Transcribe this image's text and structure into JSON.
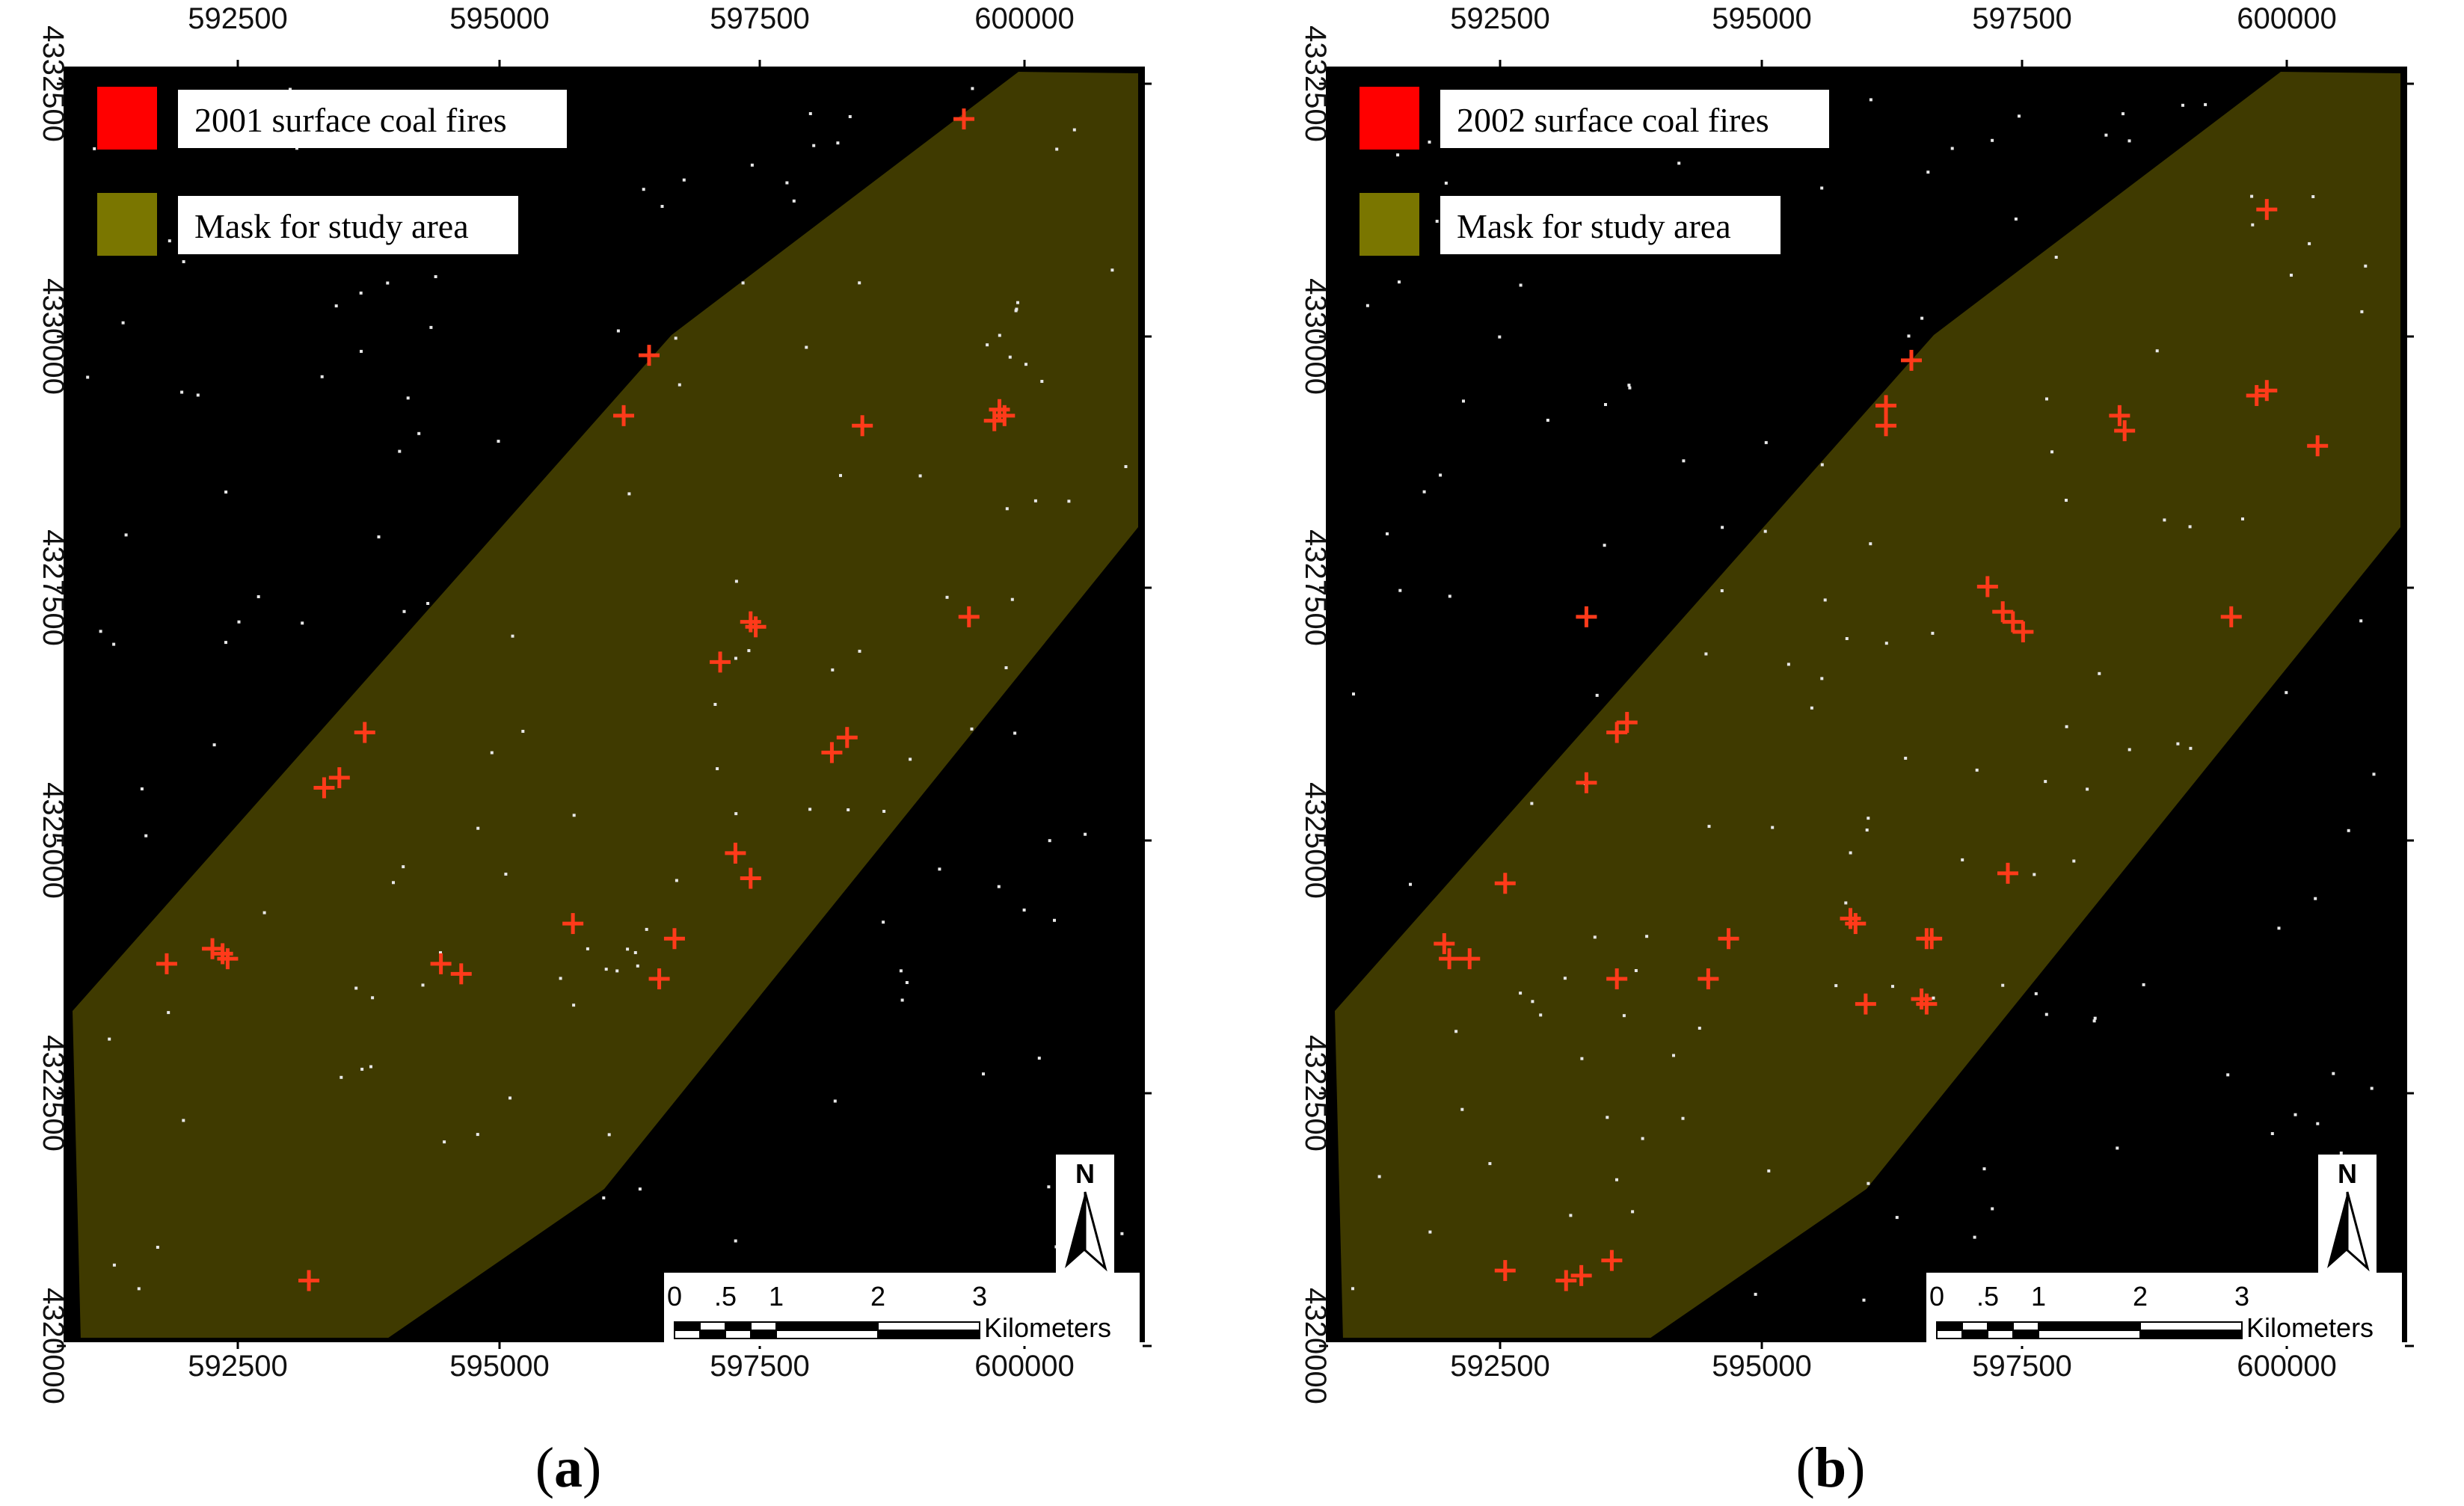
{
  "colors": {
    "background": "#000000",
    "mask": "#3f3a00",
    "mask_swatch": "#7a7600",
    "fire_swatch": "#ff0000",
    "fire_marker": "#ff3a1a",
    "noise": "#e8e8e8",
    "frame": "#000000"
  },
  "panels": [
    {
      "id": "a",
      "caption_open": "(",
      "caption_letter": "a",
      "caption_close": ")",
      "legend": [
        {
          "label": "2001 surface coal fires",
          "swatch": "fire"
        },
        {
          "label": "Mask for study area",
          "swatch": "mask"
        }
      ],
      "x_ticks": [
        "592500",
        "595000",
        "597500",
        "600000"
      ],
      "y_ticks": [
        "4332500",
        "4330000",
        "4327500",
        "4325000",
        "4322500",
        "4320000"
      ],
      "north_label": "N",
      "scalebar": {
        "labels": [
          "0",
          ".5",
          "1",
          "2",
          "3"
        ],
        "unit": "Kilometers"
      },
      "fires": [
        [
          600000,
          4329260
        ],
        [
          599950,
          4329150
        ],
        [
          600050,
          4329200
        ],
        [
          598650,
          4329100
        ],
        [
          596550,
          4329800
        ],
        [
          596300,
          4329200
        ],
        [
          597550,
          4327150
        ],
        [
          597600,
          4327100
        ],
        [
          597250,
          4326750
        ],
        [
          599700,
          4327200
        ],
        [
          599650,
          4332150
        ],
        [
          593750,
          4326050
        ],
        [
          593500,
          4325600
        ],
        [
          593350,
          4325500
        ],
        [
          598500,
          4326000
        ],
        [
          598350,
          4325850
        ],
        [
          597400,
          4324850
        ],
        [
          597550,
          4324600
        ],
        [
          596800,
          4324000
        ],
        [
          596650,
          4323600
        ],
        [
          595800,
          4324150
        ],
        [
          594500,
          4323750
        ],
        [
          594700,
          4323650
        ],
        [
          592250,
          4323900
        ],
        [
          592350,
          4323850
        ],
        [
          592400,
          4323800
        ],
        [
          591800,
          4323750
        ],
        [
          593200,
          4320600
        ]
      ]
    },
    {
      "id": "b",
      "caption_open": "(",
      "caption_letter": "b",
      "caption_close": ")",
      "legend": [
        {
          "label": "2002 surface coal fires",
          "swatch": "fire"
        },
        {
          "label": "Mask for study area",
          "swatch": "mask"
        }
      ],
      "x_ticks": [
        "592500",
        "595000",
        "597500",
        "600000"
      ],
      "y_ticks": [
        "4332500",
        "4330000",
        "4327500",
        "4325000",
        "4322500",
        "4320000"
      ],
      "north_label": "N",
      "scalebar": {
        "labels": [
          "0",
          ".5",
          "1",
          "2",
          "3"
        ],
        "unit": "Kilometers"
      },
      "fires": [
        [
          600050,
          4331250
        ],
        [
          600050,
          4329450
        ],
        [
          599950,
          4329400
        ],
        [
          600550,
          4328900
        ],
        [
          598600,
          4329200
        ],
        [
          598650,
          4329050
        ],
        [
          596550,
          4329750
        ],
        [
          596300,
          4329300
        ],
        [
          596300,
          4329100
        ],
        [
          597300,
          4327500
        ],
        [
          597450,
          4327250
        ],
        [
          597550,
          4327150
        ],
        [
          597650,
          4327050
        ],
        [
          599700,
          4327200
        ],
        [
          593350,
          4327200
        ],
        [
          593750,
          4326150
        ],
        [
          593650,
          4326050
        ],
        [
          593350,
          4325550
        ],
        [
          597500,
          4324650
        ],
        [
          592550,
          4324550
        ],
        [
          595950,
          4324200
        ],
        [
          596000,
          4324150
        ],
        [
          594750,
          4324000
        ],
        [
          596700,
          4324000
        ],
        [
          596750,
          4324000
        ],
        [
          591950,
          4323950
        ],
        [
          592000,
          4323800
        ],
        [
          592200,
          4323800
        ],
        [
          593650,
          4323600
        ],
        [
          594550,
          4323600
        ],
        [
          596650,
          4323400
        ],
        [
          596700,
          4323350
        ],
        [
          596100,
          4323350
        ],
        [
          593600,
          4320800
        ],
        [
          592550,
          4320700
        ],
        [
          593150,
          4320600
        ],
        [
          593300,
          4320650
        ]
      ]
    }
  ]
}
